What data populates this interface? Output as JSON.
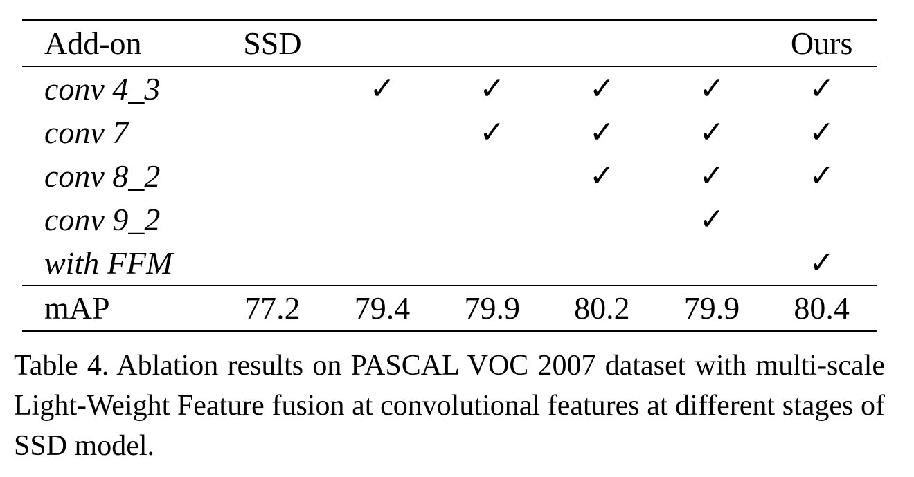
{
  "table": {
    "columns": [
      "Add-on",
      "SSD",
      "",
      "",
      "",
      "",
      "Ours"
    ],
    "rows": [
      {
        "label": "conv 4_3",
        "checks": [
          "",
          "✓",
          "✓",
          "✓",
          "✓",
          "✓"
        ]
      },
      {
        "label": "conv 7",
        "checks": [
          "",
          "",
          "✓",
          "✓",
          "✓",
          "✓"
        ]
      },
      {
        "label": "conv 8_2",
        "checks": [
          "",
          "",
          "",
          "✓",
          "✓",
          "✓"
        ]
      },
      {
        "label": "conv 9_2",
        "checks": [
          "",
          "",
          "",
          "",
          "✓",
          ""
        ]
      },
      {
        "label": "with FFM",
        "checks": [
          "",
          "",
          "",
          "",
          "",
          "✓"
        ]
      }
    ],
    "map_row": {
      "label": "mAP",
      "values": [
        "77.2",
        "79.4",
        "79.9",
        "80.2",
        "79.9",
        "80.4"
      ]
    }
  },
  "caption": "Table 4. Ablation results on PASCAL VOC 2007 dataset with multi-scale Light-Weight Feature fusion at convolutional features at different stages of SSD model."
}
